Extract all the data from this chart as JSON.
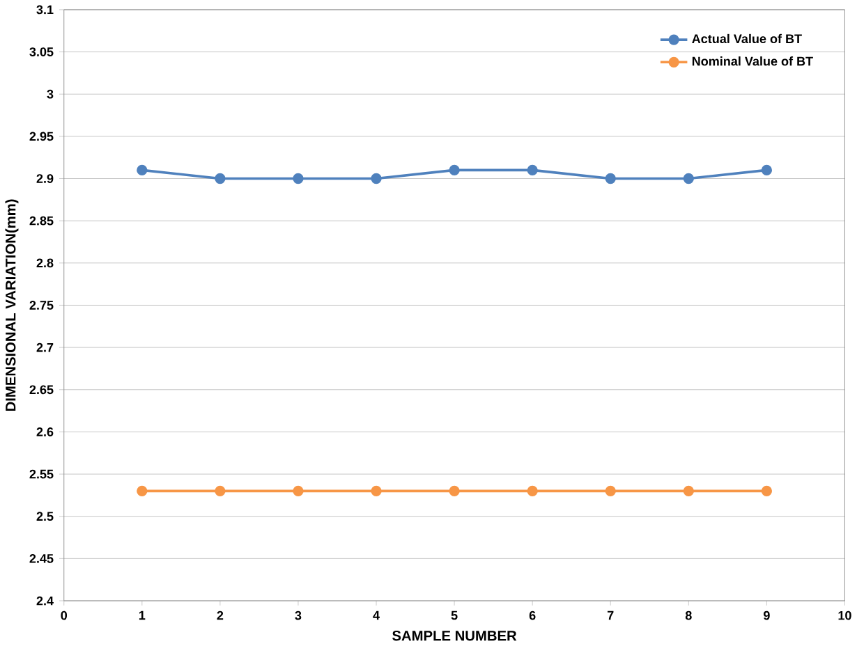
{
  "chart_data": {
    "type": "line",
    "xlabel": "SAMPLE NUMBER",
    "ylabel": "DIMENSIONAL VARIATION(mm)",
    "x": [
      1,
      2,
      3,
      4,
      5,
      6,
      7,
      8,
      9
    ],
    "series": [
      {
        "name": "Actual Value of BT",
        "color": "#4f81bd",
        "values": [
          2.91,
          2.9,
          2.9,
          2.9,
          2.91,
          2.91,
          2.9,
          2.9,
          2.91
        ]
      },
      {
        "name": "Nominal Value of BT",
        "color": "#f79646",
        "values": [
          2.53,
          2.53,
          2.53,
          2.53,
          2.53,
          2.53,
          2.53,
          2.53,
          2.53
        ]
      }
    ],
    "xlim": [
      0,
      10
    ],
    "xticks": [
      0,
      1,
      2,
      3,
      4,
      5,
      6,
      7,
      8,
      9,
      10
    ],
    "ylim": [
      2.4,
      3.1
    ],
    "yticks": [
      2.4,
      2.45,
      2.5,
      2.55,
      2.6,
      2.65,
      2.7,
      2.75,
      2.8,
      2.85,
      2.9,
      2.95,
      3,
      3.05,
      3.1
    ],
    "grid": "y",
    "legend": "top right",
    "marker": "circle",
    "line_style": "solid"
  }
}
